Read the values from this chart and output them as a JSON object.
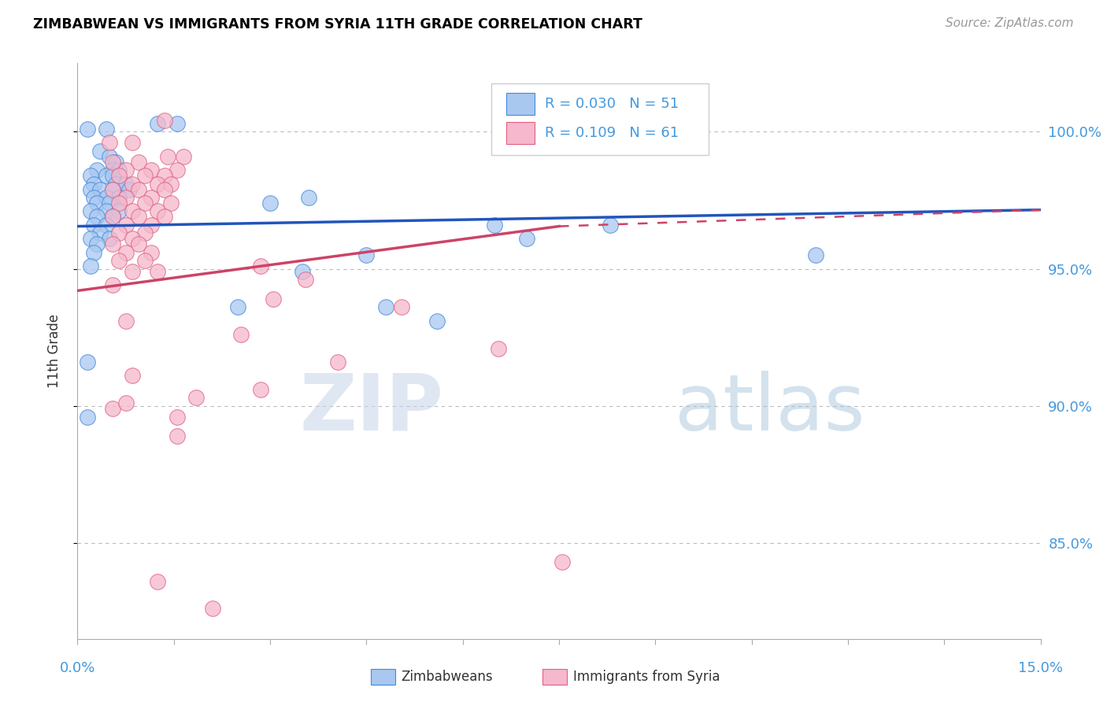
{
  "title": "ZIMBABWEAN VS IMMIGRANTS FROM SYRIA 11TH GRADE CORRELATION CHART",
  "source": "Source: ZipAtlas.com",
  "ylabel": "11th Grade",
  "xlim": [
    0.0,
    15.0
  ],
  "ylim": [
    81.5,
    102.5
  ],
  "yticks": [
    85.0,
    90.0,
    95.0,
    100.0
  ],
  "ytick_labels": [
    "85.0%",
    "90.0%",
    "95.0%",
    "100.0%"
  ],
  "watermark_zip": "ZIP",
  "watermark_atlas": "atlas",
  "legend_blue_r": "R = 0.030",
  "legend_blue_n": "N = 51",
  "legend_pink_r": "R = 0.109",
  "legend_pink_n": "N = 61",
  "blue_fill": "#a8c8f0",
  "pink_fill": "#f5b8cc",
  "blue_edge": "#4488dd",
  "pink_edge": "#e06080",
  "blue_line_color": "#2255bb",
  "pink_line_color": "#cc4466",
  "axis_color": "#aaaaaa",
  "tick_color": "#4499dd",
  "grid_color": "#bbbbbb",
  "blue_scatter": [
    [
      0.15,
      100.1
    ],
    [
      0.45,
      100.1
    ],
    [
      1.25,
      100.3
    ],
    [
      1.55,
      100.3
    ],
    [
      0.35,
      99.3
    ],
    [
      0.5,
      99.1
    ],
    [
      0.6,
      98.9
    ],
    [
      0.3,
      98.6
    ],
    [
      0.55,
      98.6
    ],
    [
      0.65,
      98.6
    ],
    [
      0.2,
      98.4
    ],
    [
      0.45,
      98.4
    ],
    [
      0.55,
      98.4
    ],
    [
      0.25,
      98.1
    ],
    [
      0.6,
      98.1
    ],
    [
      0.75,
      98.1
    ],
    [
      0.2,
      97.9
    ],
    [
      0.35,
      97.9
    ],
    [
      0.55,
      97.9
    ],
    [
      0.8,
      97.9
    ],
    [
      0.25,
      97.6
    ],
    [
      0.45,
      97.6
    ],
    [
      0.65,
      97.6
    ],
    [
      0.3,
      97.4
    ],
    [
      0.5,
      97.4
    ],
    [
      0.2,
      97.1
    ],
    [
      0.45,
      97.1
    ],
    [
      0.65,
      97.1
    ],
    [
      0.3,
      96.9
    ],
    [
      0.55,
      96.9
    ],
    [
      0.25,
      96.6
    ],
    [
      0.45,
      96.6
    ],
    [
      0.35,
      96.3
    ],
    [
      0.2,
      96.1
    ],
    [
      0.5,
      96.1
    ],
    [
      0.3,
      95.9
    ],
    [
      0.25,
      95.6
    ],
    [
      4.5,
      95.5
    ],
    [
      0.2,
      95.1
    ],
    [
      3.6,
      97.6
    ],
    [
      5.6,
      93.1
    ],
    [
      11.5,
      95.5
    ],
    [
      7.0,
      96.1
    ],
    [
      6.5,
      96.6
    ],
    [
      8.3,
      96.6
    ],
    [
      3.5,
      94.9
    ],
    [
      0.15,
      91.6
    ],
    [
      0.15,
      89.6
    ],
    [
      2.5,
      93.6
    ],
    [
      3.0,
      97.4
    ],
    [
      4.8,
      93.6
    ]
  ],
  "pink_scatter": [
    [
      1.35,
      100.4
    ],
    [
      0.5,
      99.6
    ],
    [
      0.85,
      99.6
    ],
    [
      1.4,
      99.1
    ],
    [
      1.65,
      99.1
    ],
    [
      0.55,
      98.9
    ],
    [
      0.95,
      98.9
    ],
    [
      0.75,
      98.6
    ],
    [
      1.15,
      98.6
    ],
    [
      1.55,
      98.6
    ],
    [
      0.65,
      98.4
    ],
    [
      1.05,
      98.4
    ],
    [
      1.35,
      98.4
    ],
    [
      0.85,
      98.1
    ],
    [
      1.25,
      98.1
    ],
    [
      1.45,
      98.1
    ],
    [
      0.55,
      97.9
    ],
    [
      0.95,
      97.9
    ],
    [
      1.35,
      97.9
    ],
    [
      0.75,
      97.6
    ],
    [
      1.15,
      97.6
    ],
    [
      0.65,
      97.4
    ],
    [
      1.05,
      97.4
    ],
    [
      1.45,
      97.4
    ],
    [
      0.85,
      97.1
    ],
    [
      1.25,
      97.1
    ],
    [
      0.55,
      96.9
    ],
    [
      0.95,
      96.9
    ],
    [
      1.35,
      96.9
    ],
    [
      0.75,
      96.6
    ],
    [
      1.15,
      96.6
    ],
    [
      0.65,
      96.3
    ],
    [
      1.05,
      96.3
    ],
    [
      0.85,
      96.1
    ],
    [
      0.55,
      95.9
    ],
    [
      0.95,
      95.9
    ],
    [
      0.75,
      95.6
    ],
    [
      1.15,
      95.6
    ],
    [
      0.65,
      95.3
    ],
    [
      1.05,
      95.3
    ],
    [
      2.85,
      95.1
    ],
    [
      0.85,
      94.9
    ],
    [
      1.25,
      94.9
    ],
    [
      3.55,
      94.6
    ],
    [
      0.55,
      94.4
    ],
    [
      3.05,
      93.9
    ],
    [
      5.05,
      93.6
    ],
    [
      0.75,
      93.1
    ],
    [
      2.55,
      92.6
    ],
    [
      4.05,
      91.6
    ],
    [
      1.55,
      89.6
    ],
    [
      0.85,
      91.1
    ],
    [
      6.55,
      92.1
    ],
    [
      1.55,
      88.9
    ],
    [
      0.55,
      89.9
    ],
    [
      2.85,
      90.6
    ],
    [
      1.85,
      90.3
    ],
    [
      0.75,
      90.1
    ],
    [
      2.1,
      82.6
    ],
    [
      7.55,
      84.3
    ],
    [
      1.25,
      83.6
    ]
  ],
  "blue_line": [
    [
      0.0,
      96.55
    ],
    [
      15.0,
      97.15
    ]
  ],
  "pink_line_solid": [
    [
      0.0,
      94.2
    ],
    [
      7.5,
      96.55
    ]
  ],
  "pink_line_dashed": [
    [
      7.5,
      96.55
    ],
    [
      15.0,
      97.15
    ]
  ]
}
